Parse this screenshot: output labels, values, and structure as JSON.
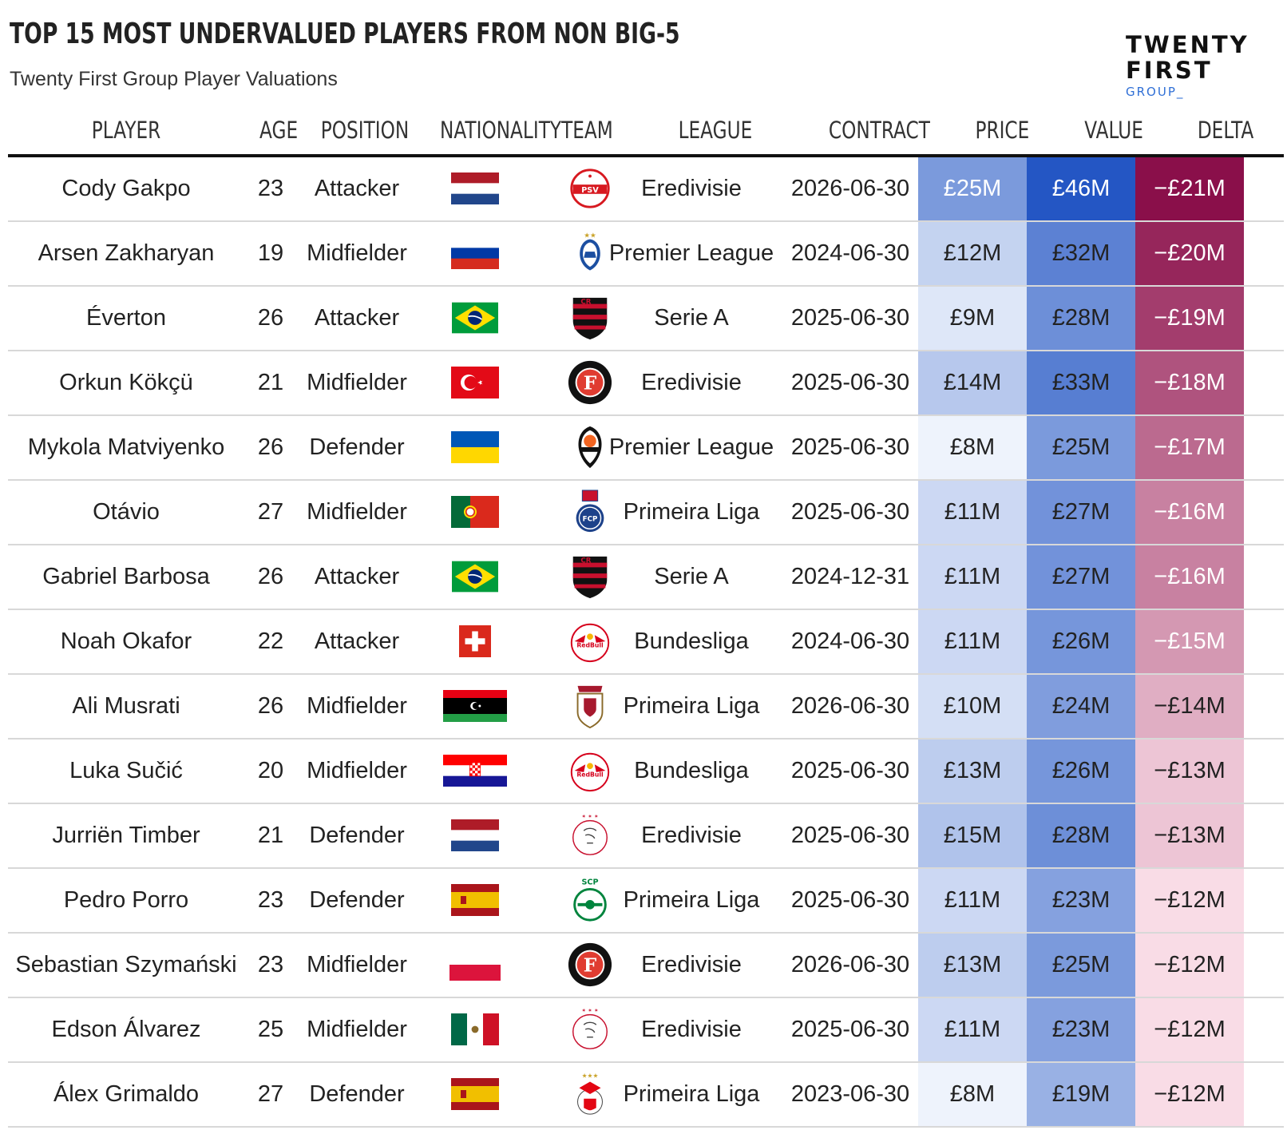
{
  "title": "TOP 15 MOST UNDERVALUED PLAYERS FROM NON BIG-5",
  "subtitle": "Twenty First Group Player Valuations",
  "logo": {
    "line1": "TWENTY",
    "line2": "FIRST",
    "line3": "GROUP_"
  },
  "headers": {
    "player": "PLAYER",
    "age": "AGE",
    "position": "POSITION",
    "nationality": "NATIONALITY",
    "team": "TEAM",
    "league": "LEAGUE",
    "contract": "CONTRACT",
    "price": "PRICE",
    "value": "VALUE",
    "delta": "DELTA"
  },
  "colors": {
    "price_value_low": "#eef3fc",
    "price_value_high": "#2456c4",
    "delta_low": "#f9dce6",
    "delta_high": "#8a0f4a"
  },
  "chart_data": {
    "type": "table",
    "columns": [
      "PLAYER",
      "AGE",
      "POSITION",
      "NATIONALITY",
      "TEAM",
      "LEAGUE",
      "CONTRACT",
      "PRICE",
      "VALUE",
      "DELTA"
    ],
    "rows": [
      {
        "player": "Cody Gakpo",
        "age": "23",
        "position": "Attacker",
        "nationality": "netherlands",
        "team": "psv-crest-icon",
        "league": "Eredivisie",
        "contract": "2026-06-30",
        "price": "£25M",
        "value": "£46M",
        "delta": "−£21M",
        "price_num": 25,
        "value_num": 46,
        "delta_num": -21
      },
      {
        "player": "Arsen Zakharyan",
        "age": "19",
        "position": "Midfielder",
        "nationality": "russia",
        "team": "dynamo-crest-icon",
        "league": "Premier League",
        "contract": "2024-06-30",
        "price": "£12M",
        "value": "£32M",
        "delta": "−£20M",
        "price_num": 12,
        "value_num": 32,
        "delta_num": -20
      },
      {
        "player": "Éverton",
        "age": "26",
        "position": "Attacker",
        "nationality": "brazil",
        "team": "flamengo-crest-icon",
        "league": "Serie A",
        "contract": "2025-06-30",
        "price": "£9M",
        "value": "£28M",
        "delta": "−£19M",
        "price_num": 9,
        "value_num": 28,
        "delta_num": -19
      },
      {
        "player": "Orkun Kökçü",
        "age": "21",
        "position": "Midfielder",
        "nationality": "turkey",
        "team": "feyenoord-crest-icon",
        "league": "Eredivisie",
        "contract": "2025-06-30",
        "price": "£14M",
        "value": "£33M",
        "delta": "−£18M",
        "price_num": 14,
        "value_num": 33,
        "delta_num": -18
      },
      {
        "player": "Mykola Matviyenko",
        "age": "26",
        "position": "Defender",
        "nationality": "ukraine",
        "team": "shakhtar-crest-icon",
        "league": "Premier League",
        "contract": "2025-06-30",
        "price": "£8M",
        "value": "£25M",
        "delta": "−£17M",
        "price_num": 8,
        "value_num": 25,
        "delta_num": -17
      },
      {
        "player": "Otávio",
        "age": "27",
        "position": "Midfielder",
        "nationality": "portugal",
        "team": "porto-crest-icon",
        "league": "Primeira Liga",
        "contract": "2025-06-30",
        "price": "£11M",
        "value": "£27M",
        "delta": "−£16M",
        "price_num": 11,
        "value_num": 27,
        "delta_num": -16
      },
      {
        "player": "Gabriel Barbosa",
        "age": "26",
        "position": "Attacker",
        "nationality": "brazil",
        "team": "flamengo-crest-icon",
        "league": "Serie A",
        "contract": "2024-12-31",
        "price": "£11M",
        "value": "£27M",
        "delta": "−£16M",
        "price_num": 11,
        "value_num": 27,
        "delta_num": -16
      },
      {
        "player": "Noah Okafor",
        "age": "22",
        "position": "Attacker",
        "nationality": "switzerland",
        "team": "salzburg-crest-icon",
        "league": "Bundesliga",
        "contract": "2024-06-30",
        "price": "£11M",
        "value": "£26M",
        "delta": "−£15M",
        "price_num": 11,
        "value_num": 26,
        "delta_num": -15
      },
      {
        "player": "Ali Musrati",
        "age": "26",
        "position": "Midfielder",
        "nationality": "libya",
        "team": "braga-crest-icon",
        "league": "Primeira Liga",
        "contract": "2026-06-30",
        "price": "£10M",
        "value": "£24M",
        "delta": "−£14M",
        "price_num": 10,
        "value_num": 24,
        "delta_num": -14
      },
      {
        "player": "Luka Sučić",
        "age": "20",
        "position": "Midfielder",
        "nationality": "croatia",
        "team": "salzburg-crest-icon",
        "league": "Bundesliga",
        "contract": "2025-06-30",
        "price": "£13M",
        "value": "£26M",
        "delta": "−£13M",
        "price_num": 13,
        "value_num": 26,
        "delta_num": -13
      },
      {
        "player": "Jurriën Timber",
        "age": "21",
        "position": "Defender",
        "nationality": "netherlands",
        "team": "ajax-crest-icon",
        "league": "Eredivisie",
        "contract": "2025-06-30",
        "price": "£15M",
        "value": "£28M",
        "delta": "−£13M",
        "price_num": 15,
        "value_num": 28,
        "delta_num": -13
      },
      {
        "player": "Pedro Porro",
        "age": "23",
        "position": "Defender",
        "nationality": "spain",
        "team": "sporting-crest-icon",
        "league": "Primeira Liga",
        "contract": "2025-06-30",
        "price": "£11M",
        "value": "£23M",
        "delta": "−£12M",
        "price_num": 11,
        "value_num": 23,
        "delta_num": -12
      },
      {
        "player": "Sebastian Szymański",
        "age": "23",
        "position": "Midfielder",
        "nationality": "poland",
        "team": "feyenoord-crest-icon",
        "league": "Eredivisie",
        "contract": "2026-06-30",
        "price": "£13M",
        "value": "£25M",
        "delta": "−£12M",
        "price_num": 13,
        "value_num": 25,
        "delta_num": -12
      },
      {
        "player": "Edson Álvarez",
        "age": "25",
        "position": "Midfielder",
        "nationality": "mexico",
        "team": "ajax-crest-icon",
        "league": "Eredivisie",
        "contract": "2025-06-30",
        "price": "£11M",
        "value": "£23M",
        "delta": "−£12M",
        "price_num": 11,
        "value_num": 23,
        "delta_num": -12
      },
      {
        "player": "Álex Grimaldo",
        "age": "27",
        "position": "Defender",
        "nationality": "spain",
        "team": "benfica-crest-icon",
        "league": "Primeira Liga",
        "contract": "2023-06-30",
        "price": "£8M",
        "value": "£19M",
        "delta": "−£12M",
        "price_num": 8,
        "value_num": 19,
        "delta_num": -12
      }
    ]
  }
}
